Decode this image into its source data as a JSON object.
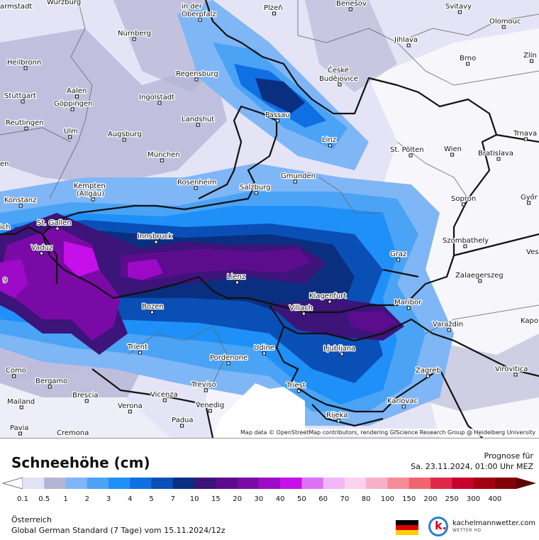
{
  "map": {
    "attribution": "Map data © OpenStreetMap contributors, rendering GIScience Research Group @ Heidelberg University",
    "cities": [
      "armstadt",
      "Würzburg",
      "in der",
      "Oberpfalz",
      "Plzeň",
      "Benešov",
      "Svitavy",
      "Nürnberg",
      "Jihlava",
      "Olomouc",
      "Heilbronn",
      "Regensburg",
      "České",
      "Budějovice",
      "Brno",
      "Zlín",
      "Stuttgart",
      "Aalen",
      "Göppingen",
      "Ingolstadt",
      "Passau",
      "Reutlingen",
      "Landshut",
      "Ulm",
      "Augsburg",
      "Linz",
      "St. Pölten",
      "Wien",
      "Bratislava",
      "Trnava",
      "München",
      "Gmunden",
      "Rosenheim",
      "Kempten",
      "(Allgäu)",
      "Salzburg",
      "Konstanz",
      "Sopron",
      "Győr",
      "St. Gallen",
      "ich",
      "Innsbruck",
      "Vaduz",
      "Szombathely",
      "Graz",
      "Ves",
      "Lienz",
      "Zalaegerszeg",
      "Klagenfurt",
      "Villach",
      "Maribor",
      "Bozen",
      "Varaždin",
      "Kapo",
      "Trient",
      "Udine",
      "Ljubljana",
      "Pordenone",
      "Zagreb",
      "Virovitica",
      "Como",
      "Bergamo",
      "Treviso",
      "Triest",
      "Brescia",
      "Vicenza",
      "Mailand",
      "Verona",
      "Venedig",
      "Karlovac",
      "Padua",
      "Rijeka",
      "Pavia",
      "Cremona",
      "en",
      "9"
    ]
  },
  "legend": {
    "title": "Schneehöhe (cm)",
    "forecast_label": "Prognose für",
    "forecast_time": "Sa. 23.11.2024, 01:00 Uhr MEZ",
    "region": "Österreich",
    "model": "Global German Standard (7 Tage)  vom  15.11.2024/12z",
    "brand_name": "kachelmannwetter.com",
    "brand_sub": "WETTER HD",
    "brand_logo_letter": "k.",
    "ticks": [
      "0.1",
      "0.5",
      "1",
      "2",
      "3",
      "4",
      "5",
      "7",
      "10",
      "15",
      "20",
      "30",
      "40",
      "50",
      "60",
      "70",
      "80",
      "100",
      "150",
      "200",
      "250",
      "300",
      "400"
    ],
    "colors": [
      "#ffffff",
      "#e2e2f7",
      "#b4b4d6",
      "#7fb6f6",
      "#4aa3f5",
      "#1e90f7",
      "#0f6fe3",
      "#0a4fb6",
      "#0a2f80",
      "#3c147a",
      "#5c0c8c",
      "#7a0aa6",
      "#9c0ac8",
      "#c610ea",
      "#de70f6",
      "#f2b6f8",
      "#fbd2ee",
      "#f7b0c8",
      "#f58c96",
      "#f06470",
      "#e0284a",
      "#c8002a",
      "#a40012",
      "#820008",
      "#5c0000"
    ]
  }
}
